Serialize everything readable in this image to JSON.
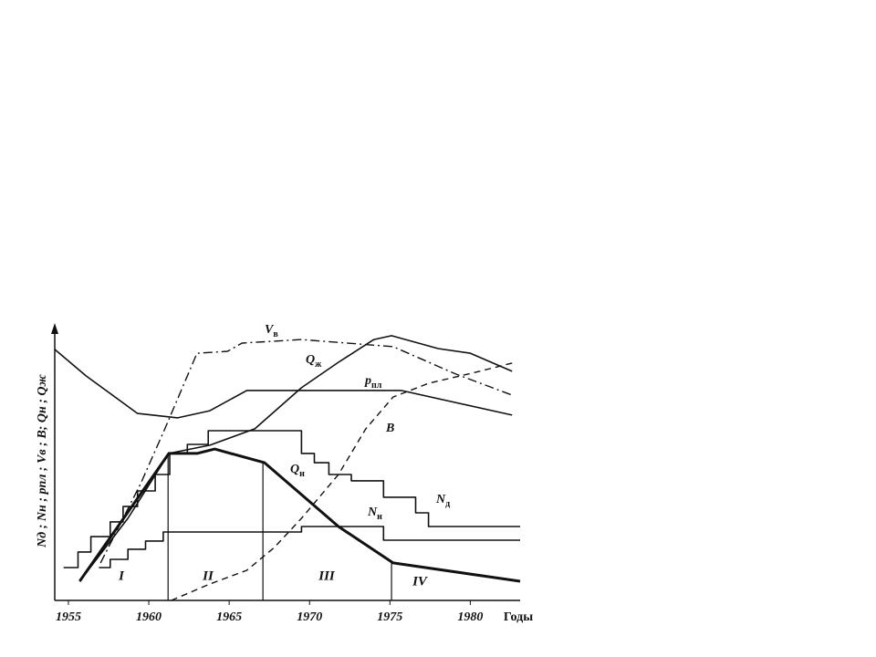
{
  "chart_data": {
    "type": "line",
    "y_label": "Nд ; Nн ; pпл ; Vв ; B; Qн ; Qж",
    "x_label": "Годы",
    "xlim": [
      1954.15,
      1983.1
    ],
    "ylim": [
      0,
      100
    ],
    "xticks": [
      1955,
      1960,
      1965,
      1970,
      1975,
      1980
    ],
    "color": "#111111",
    "series": [
      {
        "name": "pпл",
        "style": "solid",
        "width": 1.6,
        "x": [
          1954.15,
          1956.1,
          1959.3,
          1961.8,
          1963.8,
          1966.1,
          1975.7,
          1982.6
        ],
        "values": [
          91.7,
          82,
          68.3,
          66.7,
          69.3,
          76.7,
          76.7,
          67.7
        ]
      },
      {
        "name": "Qж",
        "style": "solid",
        "width": 1.6,
        "x": [
          1955.7,
          1958.7,
          1961.25,
          1963.8,
          1966.6,
          1969.5,
          1971.8,
          1974,
          1975.1,
          1978,
          1980,
          1982.6
        ],
        "values": [
          7,
          30,
          53.7,
          56.7,
          62.7,
          77.7,
          87,
          95.3,
          96.7,
          92,
          90.3,
          83.7
        ]
      },
      {
        "name": "Vв",
        "style": "dashdot",
        "width": 1.4,
        "x": [
          1957,
          1959.5,
          1961,
          1963,
          1964.9,
          1965.8,
          1969.5,
          1975.2,
          1979.1,
          1982.6
        ],
        "values": [
          13.7,
          42.7,
          62.7,
          90.3,
          91,
          94,
          95.3,
          92.7,
          82.7,
          75
        ]
      },
      {
        "name": "B",
        "style": "dashed",
        "width": 1.4,
        "x": [
          1961.4,
          1963.8,
          1966.1,
          1967.8,
          1969.5,
          1971.8,
          1973.5,
          1975.2,
          1977.4,
          1980.3,
          1982.6
        ],
        "values": [
          0,
          6,
          11,
          19.3,
          30,
          46,
          62.7,
          74.3,
          79.3,
          83.3,
          86.7
        ]
      },
      {
        "name": "Qн",
        "style": "solid",
        "width": 3,
        "x": [
          1955.7,
          1961.25,
          1963,
          1964.1,
          1967.2,
          1971.8,
          1975.2,
          1983.1
        ],
        "values": [
          7,
          53.7,
          53.7,
          55.3,
          50.3,
          27,
          13.7,
          7
        ]
      },
      {
        "name": "Nд",
        "style": "solid",
        "width": 1.6,
        "x": [
          1954.7,
          1955.6,
          1955.6,
          1956.4,
          1956.4,
          1957.6,
          1957.6,
          1958.4,
          1958.4,
          1959.3,
          1959.3,
          1960.4,
          1960.4,
          1961.3,
          1961.3,
          1962.4,
          1962.4,
          1963.7,
          1963.7,
          1969.5,
          1969.5,
          1970.3,
          1970.3,
          1971.2,
          1971.2,
          1972.6,
          1972.6,
          1974.6,
          1974.6,
          1976.6,
          1976.6,
          1977.4,
          1977.4,
          1983.1
        ],
        "values": [
          12,
          12,
          17.7,
          17.7,
          23.3,
          23.3,
          28.7,
          28.7,
          34.3,
          34.3,
          40,
          40,
          46,
          46,
          53.7,
          53.7,
          57,
          57,
          62,
          62,
          53.7,
          53.7,
          50.3,
          50.3,
          46,
          46,
          43.7,
          43.7,
          37.7,
          37.7,
          32,
          32,
          27,
          27
        ]
      },
      {
        "name": "Nн",
        "style": "solid",
        "width": 1.6,
        "x": [
          1956.9,
          1957.6,
          1957.6,
          1958.7,
          1958.7,
          1959.8,
          1959.8,
          1960.9,
          1960.9,
          1969.5,
          1969.5,
          1974.6,
          1974.6,
          1983.1
        ],
        "values": [
          12,
          12,
          15,
          15,
          18.7,
          18.7,
          21.7,
          21.7,
          25,
          25,
          27,
          27,
          22,
          22
        ]
      }
    ],
    "boundaries": [
      1961.2,
      1967.1,
      1975.1
    ],
    "stages": [
      "I",
      "II",
      "III",
      "IV"
    ]
  }
}
